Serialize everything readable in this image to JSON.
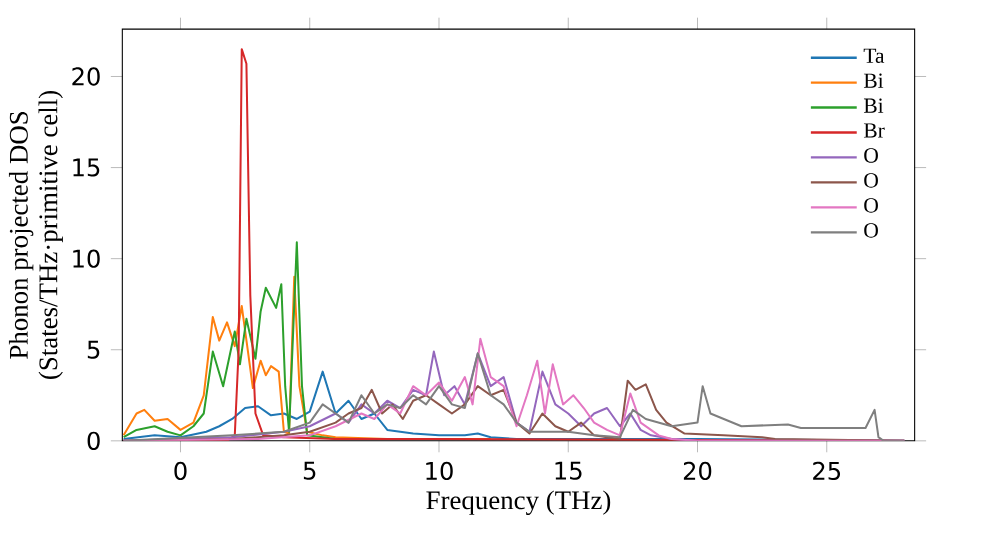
{
  "chart_data": {
    "type": "line",
    "xlabel": "Frequency (THz)",
    "ylabel": "Phonon projected DOS\n(States/THz·primitive cell)",
    "xlim": [
      -2.25,
      28.4
    ],
    "ylim": [
      0,
      22.6
    ],
    "xticks": [
      0,
      5,
      10,
      15,
      20,
      25
    ],
    "yticks": [
      0,
      5,
      10,
      15,
      20
    ],
    "grid": false,
    "legend": "top right",
    "marker": "none",
    "line_style": "solid",
    "series": [
      {
        "name": "Ta",
        "color": "#1f77b4",
        "x": [
          -2.2,
          -1,
          0,
          1,
          1.5,
          2,
          2.5,
          3,
          3.5,
          4,
          4.5,
          5,
          5.5,
          6,
          6.5,
          7,
          7.5,
          8,
          9,
          10,
          11,
          11.5,
          12,
          13,
          15,
          20,
          28
        ],
        "values": [
          0.1,
          0.3,
          0.2,
          0.5,
          0.8,
          1.2,
          1.8,
          1.9,
          1.4,
          1.5,
          1.2,
          1.6,
          3.8,
          1.5,
          2.2,
          1.2,
          1.5,
          0.6,
          0.4,
          0.3,
          0.3,
          0.4,
          0.2,
          0.1,
          0.1,
          0.1,
          0
        ]
      },
      {
        "name": "Bi",
        "color": "#ff7f0e",
        "x": [
          -2.2,
          -1.7,
          -1.4,
          -1,
          -0.5,
          0,
          0.5,
          0.9,
          1.25,
          1.5,
          1.8,
          2.1,
          2.37,
          2.6,
          2.8,
          3.1,
          3.3,
          3.5,
          3.8,
          4.0,
          4.2,
          4.4,
          4.6,
          4.9,
          5.5,
          6,
          8,
          12
        ],
        "values": [
          0.3,
          1.5,
          1.7,
          1.1,
          1.2,
          0.6,
          1.0,
          2.5,
          6.8,
          5.5,
          6.5,
          5.2,
          7.4,
          5.0,
          2.9,
          4.4,
          3.6,
          4.1,
          3.8,
          0.5,
          0.4,
          9.0,
          3.0,
          0.5,
          0.3,
          0.2,
          0.1,
          0.1
        ]
      },
      {
        "name": "Bi",
        "color": "#2ca02c",
        "x": [
          -2.2,
          -1.7,
          -1,
          -0.5,
          0,
          0.5,
          0.9,
          1.25,
          1.65,
          2.1,
          2.3,
          2.55,
          2.9,
          3.1,
          3.3,
          3.7,
          3.9,
          4.05,
          4.2,
          4.5,
          4.7,
          4.9,
          5.5,
          6
        ],
        "values": [
          0.2,
          0.6,
          0.8,
          0.5,
          0.3,
          0.8,
          1.5,
          4.9,
          3.0,
          6.0,
          4.2,
          6.7,
          4.5,
          7.1,
          8.4,
          7.3,
          8.6,
          3,
          0.5,
          10.9,
          3,
          0.3,
          0.2,
          0.1
        ]
      },
      {
        "name": "Br",
        "color": "#d62728",
        "x": [
          -2.2,
          1.8,
          2.1,
          2.25,
          2.37,
          2.55,
          2.7,
          2.9,
          3.2,
          4,
          6,
          10,
          28
        ],
        "values": [
          0,
          0,
          0.3,
          5,
          21.5,
          20.7,
          8,
          1.5,
          0.3,
          0.2,
          0.1,
          0.1,
          0
        ]
      },
      {
        "name": "O",
        "color": "#9467bd",
        "x": [
          -2.2,
          2,
          4,
          5,
          6,
          6.5,
          7,
          7.5,
          8,
          8.5,
          9,
          9.5,
          9.8,
          10.2,
          10.6,
          11,
          11.5,
          12,
          12.5,
          13,
          13.5,
          14,
          14.5,
          15,
          15.5,
          16,
          16.5,
          17,
          17.4,
          17.8,
          18.2,
          19,
          20,
          28
        ],
        "values": [
          0,
          0.2,
          0.5,
          0.8,
          1.5,
          1.0,
          2.0,
          1.5,
          2.2,
          1.8,
          2.8,
          2.5,
          4.9,
          2.5,
          3.0,
          2.0,
          4.8,
          3.0,
          3.5,
          1.0,
          0.5,
          3.8,
          2.0,
          1.5,
          0.8,
          1.5,
          1.8,
          0.8,
          1.5,
          0.6,
          0.3,
          0.1,
          0,
          0
        ]
      },
      {
        "name": "O",
        "color": "#8c564b",
        "x": [
          -2.2,
          2,
          4,
          5,
          6,
          6.5,
          7,
          7.4,
          7.8,
          8.2,
          8.6,
          9,
          9.5,
          10,
          10.5,
          11,
          11.5,
          12,
          12.5,
          13,
          13.5,
          14,
          14.5,
          15,
          15.5,
          16,
          16.5,
          17,
          17.3,
          17.6,
          18,
          18.4,
          18.8,
          19.5,
          21,
          22.5,
          23,
          28
        ],
        "values": [
          0,
          0.1,
          0.3,
          0.5,
          1.0,
          1.5,
          1.8,
          2.8,
          1.5,
          2.0,
          1.2,
          2.2,
          2.5,
          2.0,
          1.5,
          2.0,
          3.0,
          2.5,
          2.8,
          1.0,
          0.4,
          1.5,
          0.8,
          0.5,
          1.0,
          0.3,
          0.2,
          0.1,
          3.3,
          2.8,
          3.1,
          1.7,
          1.0,
          0.4,
          0.3,
          0.2,
          0.1,
          0
        ]
      },
      {
        "name": "O",
        "color": "#e377c2",
        "x": [
          -2.2,
          3,
          5,
          6,
          7,
          7.5,
          8,
          8.5,
          9,
          9.5,
          10,
          10.5,
          11,
          11.3,
          11.6,
          12,
          12.5,
          13,
          13.4,
          13.8,
          14.1,
          14.4,
          14.8,
          15.2,
          15.6,
          16,
          16.5,
          17,
          17.4,
          17.8,
          18.5,
          19,
          20,
          28
        ],
        "values": [
          0,
          0.1,
          0.3,
          0.8,
          1.5,
          1.2,
          2.0,
          1.5,
          3.0,
          2.5,
          3.2,
          2.2,
          3.5,
          2.0,
          5.6,
          3.5,
          3.0,
          0.8,
          2.5,
          4.4,
          1.5,
          4.2,
          2.0,
          2.5,
          1.8,
          1.0,
          0.6,
          0.3,
          2.6,
          1.0,
          0.3,
          0.1,
          0,
          0
        ]
      },
      {
        "name": "O",
        "color": "#7f7f7f",
        "x": [
          -2.2,
          2,
          4,
          5,
          5.5,
          6,
          6.5,
          7,
          7.5,
          8,
          8.5,
          9,
          9.5,
          10,
          10.5,
          11,
          11.5,
          12,
          12.5,
          13,
          13.5,
          14,
          15,
          16,
          17,
          17.5,
          18,
          19,
          20,
          20.2,
          20.5,
          21.7,
          23.5,
          24,
          26.5,
          26.85,
          27,
          27.2,
          28
        ],
        "values": [
          0,
          0.3,
          0.5,
          1.0,
          2.0,
          1.5,
          1.0,
          2.5,
          1.5,
          2.0,
          1.8,
          2.5,
          2.0,
          3.0,
          2.0,
          1.8,
          4.8,
          2.5,
          2.0,
          1.0,
          0.5,
          0.5,
          0.5,
          0.3,
          0.2,
          1.7,
          1.2,
          0.8,
          1.0,
          3.0,
          1.5,
          0.8,
          0.9,
          0.7,
          0.7,
          1.7,
          0.2,
          0,
          0
        ]
      }
    ]
  }
}
